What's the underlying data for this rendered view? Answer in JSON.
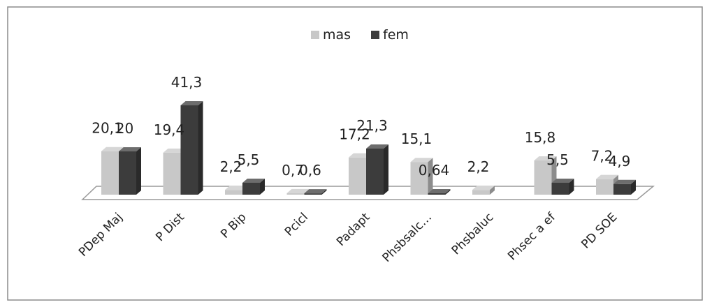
{
  "chart_data": {
    "type": "bar",
    "categories": [
      "PDep Maj",
      "P Dist",
      "P Bip",
      "Pcicl",
      "Padapt",
      "Phsbsalc…",
      "Phsbaluc",
      "Phsec a ef",
      "PD SOE"
    ],
    "series": [
      {
        "name": "mas",
        "values": [
          20.1,
          19.4,
          2.2,
          0.7,
          17.2,
          15.1,
          2.2,
          15.8,
          7.2
        ],
        "labels": [
          "20,1",
          "19,4",
          "2,2",
          "0,7",
          "17,2",
          "15,1",
          "2,2",
          "15,8",
          "7,2"
        ],
        "color": "#c8c8c8"
      },
      {
        "name": "fem",
        "values": [
          20,
          41.3,
          5.5,
          0.6,
          21.3,
          0.64,
          null,
          5.5,
          4.9
        ],
        "labels": [
          "20",
          "41,3",
          "5,5",
          "0,6",
          "21,3",
          "0,64",
          "",
          "5,5",
          "4,9"
        ],
        "color": "#3c3c3c"
      }
    ],
    "xlabel": "",
    "ylabel": "",
    "ylim": [
      0,
      45
    ],
    "grid": false,
    "legend": "top-center",
    "style": "3d-clustered-column"
  }
}
